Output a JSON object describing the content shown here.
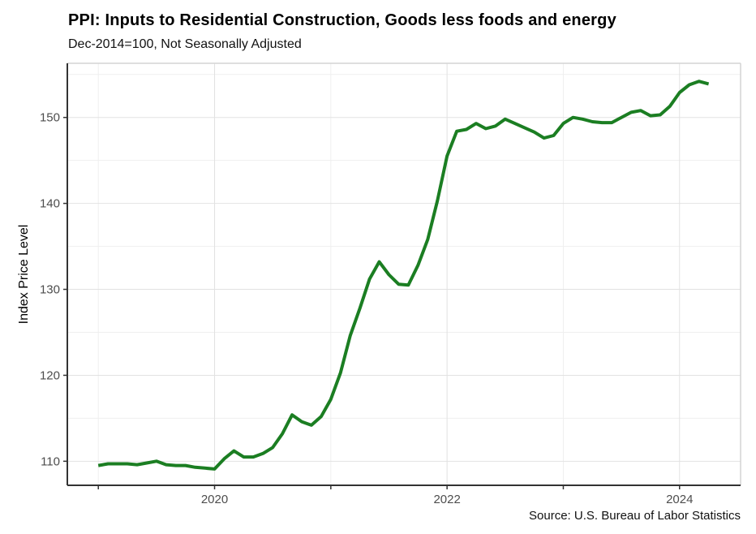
{
  "chart_data": {
    "type": "line",
    "title": "PPI: Inputs to Residential Construction, Goods less foods and energy",
    "subtitle": "Dec-2014=100, Not Seasonally Adjusted",
    "ylabel": "Index Price Level",
    "xlabel": "",
    "caption": "Source: U.S. Bureau of Labor Statistics",
    "legend_position": "none",
    "grid": "major and minor, light gray on white panel",
    "ylim": [
      107.2,
      156.3
    ],
    "y_ticks": [
      110,
      120,
      130,
      140,
      150
    ],
    "y_minor_ticks": [
      115,
      125,
      135,
      145,
      155
    ],
    "xlim_months": [
      -3.2,
      66.3
    ],
    "x_tick_years": [
      2019,
      2020,
      2021,
      2022,
      2023,
      2024
    ],
    "x_labeled_years": [
      "2020",
      "2022",
      "2024"
    ],
    "categories": [
      "2019-01",
      "2019-02",
      "2019-03",
      "2019-04",
      "2019-05",
      "2019-06",
      "2019-07",
      "2019-08",
      "2019-09",
      "2019-10",
      "2019-11",
      "2019-12",
      "2020-01",
      "2020-02",
      "2020-03",
      "2020-04",
      "2020-05",
      "2020-06",
      "2020-07",
      "2020-08",
      "2020-09",
      "2020-10",
      "2020-11",
      "2020-12",
      "2021-01",
      "2021-02",
      "2021-03",
      "2021-04",
      "2021-05",
      "2021-06",
      "2021-07",
      "2021-08",
      "2021-09",
      "2021-10",
      "2021-11",
      "2021-12",
      "2022-01",
      "2022-02",
      "2022-03",
      "2022-04",
      "2022-05",
      "2022-06",
      "2022-07",
      "2022-08",
      "2022-09",
      "2022-10",
      "2022-11",
      "2022-12",
      "2023-01",
      "2023-02",
      "2023-03",
      "2023-04",
      "2023-05",
      "2023-06",
      "2023-07",
      "2023-08",
      "2023-09",
      "2023-10",
      "2023-11",
      "2023-12",
      "2024-01",
      "2024-02",
      "2024-03",
      "2024-04"
    ],
    "series": [
      {
        "name": "PPI: Inputs to Residential Construction, Goods less foods and energy",
        "color": "#1b7e22",
        "line_width": 4,
        "values": [
          109.5,
          109.7,
          109.7,
          109.7,
          109.6,
          109.8,
          110.0,
          109.6,
          109.5,
          109.5,
          109.3,
          109.2,
          109.1,
          110.3,
          111.2,
          110.5,
          110.5,
          110.9,
          111.6,
          113.2,
          115.4,
          114.6,
          114.2,
          115.2,
          117.2,
          120.3,
          124.6,
          127.8,
          131.2,
          133.2,
          131.7,
          130.6,
          130.5,
          132.8,
          135.8,
          140.3,
          145.5,
          148.4,
          148.6,
          149.3,
          148.7,
          149.0,
          149.8,
          149.3,
          148.8,
          148.3,
          147.6,
          147.9,
          149.3,
          150.0,
          149.8,
          149.5,
          149.4,
          149.4,
          150.0,
          150.6,
          150.8,
          150.2,
          150.3,
          151.3,
          152.9,
          153.8,
          154.2,
          153.9
        ]
      }
    ],
    "colors": {
      "line": "#1b7e22",
      "axis_line": "#333333",
      "tick_label": "#4d4d4d",
      "grid_major": "#e2e2e2",
      "grid_minor": "#efefef",
      "panel_border": "#d4d4d4",
      "background": "#ffffff"
    }
  }
}
